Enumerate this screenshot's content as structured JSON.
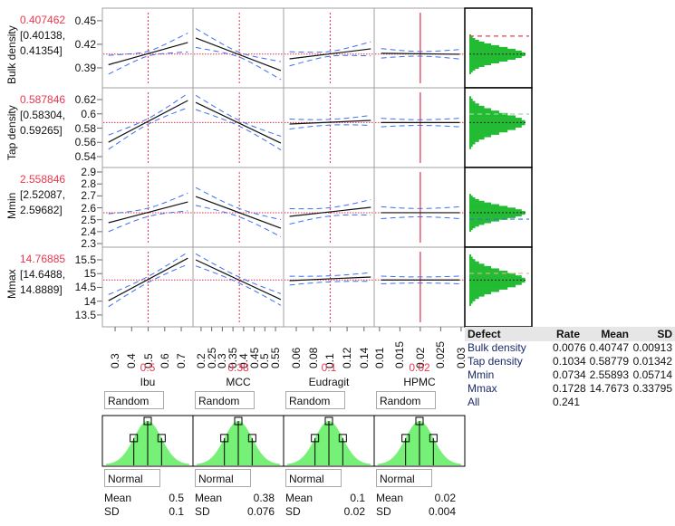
{
  "responses": [
    {
      "name": "Bulk density",
      "value": "0.407462",
      "ci_low": "[0.40138,",
      "ci_high": "0.41354]",
      "current": 0.407462,
      "ylim": [
        0.3646,
        0.466
      ],
      "ticks": [
        "0.45",
        "0.42",
        "0.39"
      ],
      "tick_values": [
        0.45,
        0.42,
        0.39
      ],
      "spec": {
        "value": 0.4304,
        "color": "#e04050"
      },
      "hist_mean": 0.40747,
      "hist_sd": 0.00913,
      "panels": [
        {
          "pred": [
            0.394,
            0.4223
          ],
          "hw_end": 0.012,
          "hw_mid": 0.003
        },
        {
          "pred": [
            0.428,
            0.3865
          ],
          "hw_end": 0.012,
          "hw_mid": 0.003
        },
        {
          "pred": [
            0.4015,
            0.4142
          ],
          "hw_end": 0.009,
          "hw_mid": 0.003
        },
        {
          "pred": [
            0.4085,
            0.4073
          ],
          "hw_end": 0.006,
          "hw_mid": 0.003
        }
      ]
    },
    {
      "name": "Tap density",
      "value": "0.587846",
      "ci_low": "[0.58304,",
      "ci_high": "0.59265]",
      "current": 0.587846,
      "ylim": [
        0.5248,
        0.6365
      ],
      "ticks": [
        "0.62",
        "0.6",
        "0.58",
        "0.56",
        "0.54"
      ],
      "tick_values": [
        0.62,
        0.6,
        0.58,
        0.56,
        0.54
      ],
      "spec": {
        "value": 0.5997,
        "color": "#9ed89e"
      },
      "hist_mean": 0.58779,
      "hist_sd": 0.01342,
      "panels": [
        {
          "pred": [
            0.5603,
            0.6187
          ],
          "hw_end": 0.01,
          "hw_mid": 0.004
        },
        {
          "pred": [
            0.616,
            0.559
          ],
          "hw_end": 0.01,
          "hw_mid": 0.004
        },
        {
          "pred": [
            0.5857,
            0.5908
          ],
          "hw_end": 0.007,
          "hw_mid": 0.004
        },
        {
          "pred": [
            0.5878,
            0.5878
          ],
          "hw_end": 0.006,
          "hw_mid": 0.004
        }
      ]
    },
    {
      "name": "Mmin",
      "value": "2.558846",
      "ci_low": "[2.52087,",
      "ci_high": "2.59682]",
      "current": 2.558846,
      "ylim": [
        2.27,
        2.938
      ],
      "ticks": [
        "2.9",
        "2.8",
        "2.7",
        "2.6",
        "2.5",
        "2.4",
        "2.3"
      ],
      "tick_values": [
        2.9,
        2.8,
        2.7,
        2.6,
        2.5,
        2.4,
        2.3
      ],
      "spec": {
        "value": 2.505,
        "color": "#3a6fe0"
      },
      "hist_mean": 2.55893,
      "hist_sd": 0.05714,
      "panels": [
        {
          "pred": [
            2.475,
            2.649
          ],
          "hw_end": 0.075,
          "hw_mid": 0.035
        },
        {
          "pred": [
            2.695,
            2.429
          ],
          "hw_end": 0.075,
          "hw_mid": 0.035
        },
        {
          "pred": [
            2.528,
            2.604
          ],
          "hw_end": 0.065,
          "hw_mid": 0.035
        },
        {
          "pred": [
            2.559,
            2.559
          ],
          "hw_end": 0.05,
          "hw_mid": 0.035
        }
      ]
    },
    {
      "name": "Mmax",
      "value": "14.76885",
      "ci_low": "[14.6488,",
      "ci_high": "14.8889]",
      "current": 14.76885,
      "ylim": [
        13.07,
        15.96
      ],
      "ticks": [
        "15.5",
        "15",
        "14.5",
        "14",
        "13.5"
      ],
      "tick_values": [
        15.5,
        15,
        14.5,
        14,
        13.5
      ],
      "spec": {
        "value": 15.01,
        "color": "#e8b080"
      },
      "hist_mean": 14.7673,
      "hist_sd": 0.33795,
      "panels": [
        {
          "pred": [
            14.02,
            15.56
          ],
          "hw_end": 0.22,
          "hw_mid": 0.11
        },
        {
          "pred": [
            15.5,
            14.06
          ],
          "hw_end": 0.22,
          "hw_mid": 0.11
        },
        {
          "pred": [
            14.746,
            14.877
          ],
          "hw_end": 0.16,
          "hw_mid": 0.11
        },
        {
          "pred": [
            14.769,
            14.769
          ],
          "hw_end": 0.14,
          "hw_mid": 0.11
        }
      ]
    }
  ],
  "factors": [
    {
      "name": "Ibu",
      "value": "0.5",
      "current": 0.5,
      "xlim": [
        0.223,
        0.771
      ],
      "line_x": [
        0.26,
        0.74
      ],
      "ticks": [
        "0.3",
        "0.4",
        "0.5",
        "0.6",
        "0.7"
      ],
      "tick_values": [
        0.3,
        0.4,
        0.5,
        0.6,
        0.7
      ],
      "random_type": "Random",
      "distribution": "Normal",
      "mean_label": "Mean",
      "mean": "0.5",
      "sd_label": "SD",
      "sd": "0.1",
      "solid_cursor": false
    },
    {
      "name": "MCC",
      "value": "0.38",
      "current": 0.38,
      "xlim": [
        0.162,
        0.588
      ],
      "line_x": [
        0.175,
        0.575
      ],
      "ticks": [
        "0.2",
        "0.25",
        "0.3",
        "0.35",
        "0.4",
        "0.45",
        "0.5",
        "0.55"
      ],
      "tick_values": [
        0.2,
        0.25,
        0.3,
        0.35,
        0.4,
        0.45,
        0.5,
        0.55
      ],
      "random_type": "Random",
      "distribution": "Normal",
      "mean_label": "Mean",
      "mean": "0.38",
      "sd_label": "SD",
      "sd": "0.076",
      "solid_cursor": false
    },
    {
      "name": "Eudragit",
      "value": "0.1",
      "current": 0.1,
      "xlim": [
        0.045,
        0.152
      ],
      "line_x": [
        0.052,
        0.148
      ],
      "ticks": [
        "0.06",
        "0.08",
        "0.1",
        "0.12",
        "0.14"
      ],
      "tick_values": [
        0.06,
        0.08,
        0.1,
        0.12,
        0.14
      ],
      "random_type": "Random",
      "distribution": "Normal",
      "mean_label": "Mean",
      "mean": "0.1",
      "sd_label": "SD",
      "sd": "0.02",
      "solid_cursor": false
    },
    {
      "name": "HPMC",
      "value": "0.02",
      "current": 0.02,
      "xlim": [
        0.0087,
        0.0309
      ],
      "line_x": [
        0.0104,
        0.0296
      ],
      "ticks": [
        "0.01",
        "0.015",
        "0.02",
        "0.025",
        "0.03"
      ],
      "tick_values": [
        0.01,
        0.015,
        0.02,
        0.025,
        0.03
      ],
      "random_type": "Random",
      "distribution": "Normal",
      "mean_label": "Mean",
      "mean": "0.02",
      "sd_label": "SD",
      "sd": "0.004",
      "solid_cursor": true
    }
  ],
  "defect_table": {
    "headers": [
      "Defect",
      "Rate",
      "Mean",
      "SD"
    ],
    "rows": [
      [
        "Bulk density",
        "0.0076",
        "0.40747",
        "0.00913"
      ],
      [
        "Tap density",
        "0.1034",
        "0.58779",
        "0.01342"
      ],
      [
        "Mmin",
        "0.0734",
        "2.55893",
        "0.05714"
      ],
      [
        "Mmax",
        "0.1728",
        "14.7673",
        "0.33795"
      ],
      [
        "All",
        "0.241",
        "",
        ""
      ]
    ]
  },
  "colors": {
    "cursor": "#e03050",
    "ci": "#3d6ff0",
    "hist": "#22bb33",
    "dist_fill": "#77f077",
    "grid": "#a0a0a0"
  }
}
